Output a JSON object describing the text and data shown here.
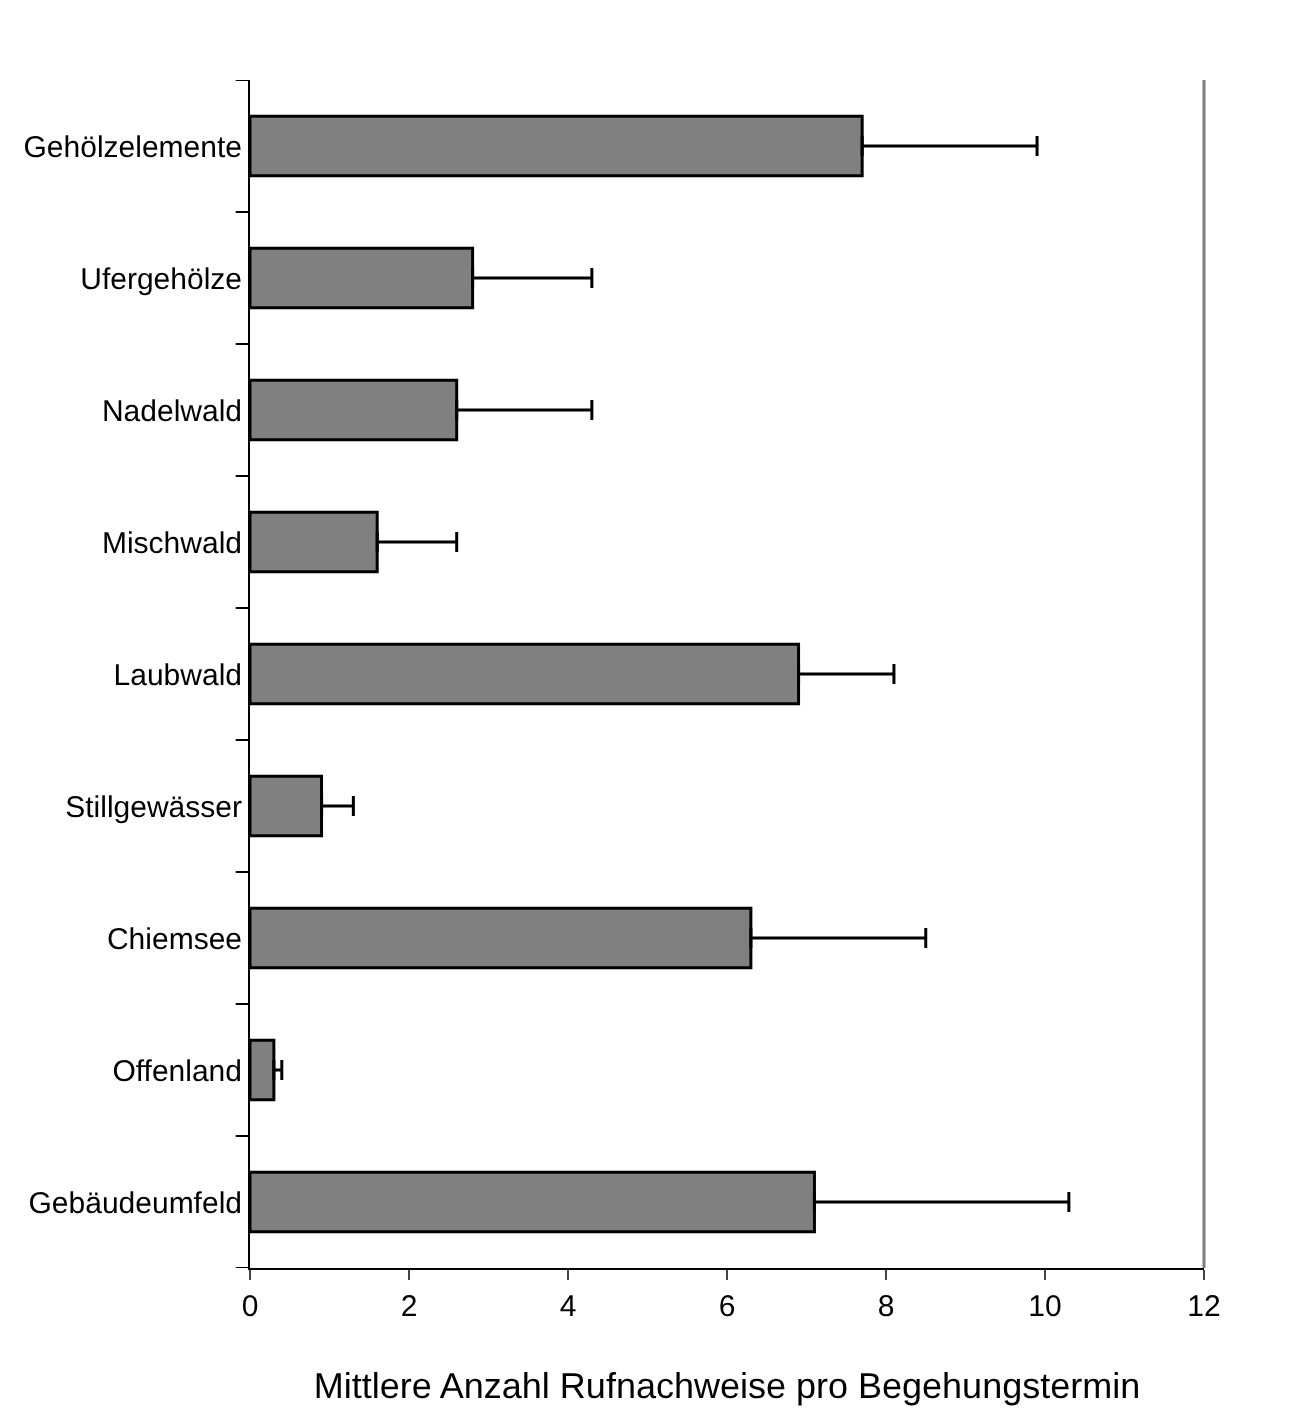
{
  "chart_data": {
    "type": "bar",
    "orientation": "horizontal",
    "xlabel": "Mittlere Anzahl Rufnachweise pro Begehungstermin",
    "categories": [
      "Gehölzelemente",
      "Ufergehölze",
      "Nadelwald",
      "Mischwald",
      "Laubwald",
      "Stillgewässer",
      "Chiemsee",
      "Offenland",
      "Gebäudeumfeld"
    ],
    "series": [
      {
        "color": "#808080",
        "values": [
          7.7,
          2.8,
          2.6,
          1.6,
          6.9,
          0.9,
          6.3,
          0.3,
          7.1
        ],
        "errors": [
          [
            7.7,
            9.9
          ],
          [
            2.8,
            4.3
          ],
          [
            2.6,
            4.3
          ],
          [
            1.6,
            2.6
          ],
          [
            6.9,
            8.1
          ],
          [
            0.9,
            1.3
          ],
          [
            6.3,
            8.5
          ],
          [
            0.3,
            0.4
          ],
          [
            7.1,
            10.3
          ]
        ]
      }
    ],
    "xlim": [
      0,
      12
    ],
    "xticks": [
      0,
      2,
      4,
      6,
      8,
      10,
      12
    ]
  }
}
